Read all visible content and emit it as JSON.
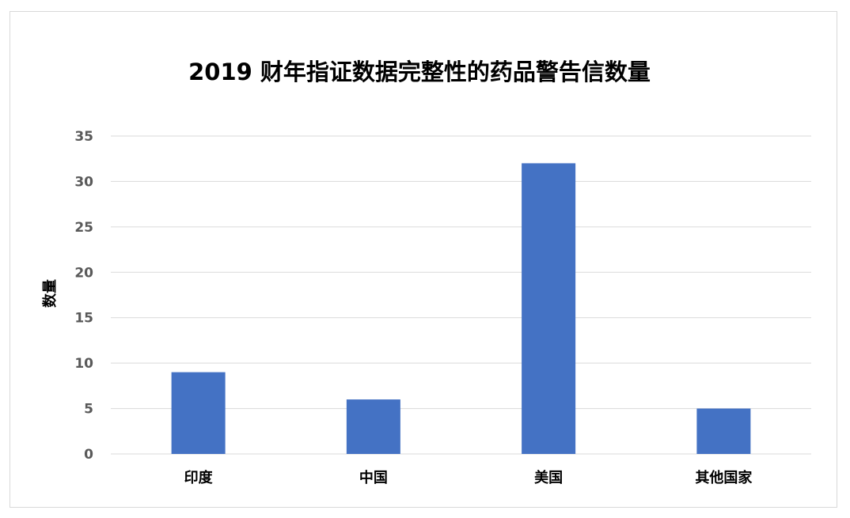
{
  "chart_data": {
    "type": "bar",
    "title": "2019 财年指证数据完整性的药品警告信数量",
    "xlabel": "",
    "ylabel": "数量",
    "categories": [
      "印度",
      "中国",
      "美国",
      "其他国家"
    ],
    "values": [
      9,
      6,
      32,
      5
    ],
    "ylim": [
      0,
      35
    ],
    "yticks": [
      0,
      5,
      10,
      15,
      20,
      25,
      30,
      35
    ],
    "grid": true,
    "legend": "none",
    "bar_color": "#4472c4",
    "grid_color": "#d9d9d9"
  }
}
